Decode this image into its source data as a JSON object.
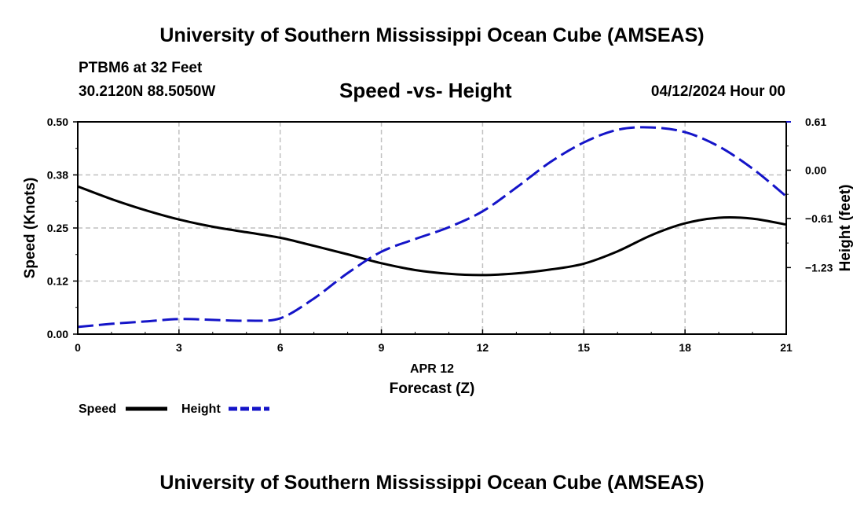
{
  "header": {
    "title": "University of Southern Mississippi Ocean Cube (AMSEAS)",
    "station": "PTBM6 at 32 Feet",
    "coordinates": "30.2120N  88.5050W",
    "subtitle": "Speed -vs- Height",
    "datetime": "04/12/2024 Hour 00"
  },
  "footer": {
    "title": "University of Southern Mississippi Ocean Cube (AMSEAS)"
  },
  "chart_data": {
    "type": "line",
    "title": "Speed -vs- Height",
    "xlabel": "Forecast (Z)",
    "date_label": "APR 12",
    "ylabel_left": "Speed (Knots)",
    "ylabel_right": "Height (feet)",
    "xlim": [
      0,
      21
    ],
    "ylim_left": [
      0,
      0.5
    ],
    "ylim_right": [
      -2.07,
      0.61
    ],
    "x_ticks": [
      0,
      3,
      6,
      9,
      12,
      15,
      18,
      21
    ],
    "x_tick_labels": [
      "0",
      "3",
      "6",
      "9",
      "12",
      "15",
      "18",
      "21"
    ],
    "left_ticks": [
      0,
      0.125,
      0.25,
      0.375,
      0.5
    ],
    "left_tick_labels": [
      "0.00",
      "0.12",
      "0.25",
      "0.38",
      "0.50"
    ],
    "right_ticks": [
      0.61,
      0.0,
      -0.61,
      -1.23
    ],
    "right_tick_labels": [
      "0.61",
      "0.00",
      "−0.61",
      "−1.23"
    ],
    "grid": true,
    "colors": {
      "speed": "#000000",
      "height": "#1414c8",
      "grid": "#c0c0c0"
    },
    "series": [
      {
        "name": "Speed",
        "axis": "left",
        "x": [
          0,
          1,
          2,
          3,
          4,
          5,
          6,
          7,
          8,
          9,
          10,
          11,
          12,
          13,
          14,
          15,
          16,
          17,
          18,
          19,
          20,
          21
        ],
        "values": [
          0.348,
          0.318,
          0.292,
          0.27,
          0.253,
          0.24,
          0.227,
          0.208,
          0.188,
          0.167,
          0.151,
          0.142,
          0.139,
          0.143,
          0.152,
          0.166,
          0.195,
          0.233,
          0.261,
          0.274,
          0.272,
          0.258
        ]
      },
      {
        "name": "Height",
        "axis": "right",
        "x": [
          0,
          1,
          2,
          3,
          4,
          5,
          6,
          7,
          8,
          9,
          10,
          11,
          12,
          13,
          14,
          15,
          16,
          17,
          18,
          19,
          20,
          21
        ],
        "values": [
          -1.98,
          -1.94,
          -1.91,
          -1.88,
          -1.89,
          -1.9,
          -1.87,
          -1.62,
          -1.3,
          -1.03,
          -0.87,
          -0.72,
          -0.52,
          -0.22,
          0.1,
          0.35,
          0.51,
          0.54,
          0.48,
          0.3,
          0.02,
          -0.33
        ]
      }
    ],
    "legend": {
      "position": "bottom-left",
      "speed_label": "Speed",
      "height_label": "Height"
    }
  }
}
